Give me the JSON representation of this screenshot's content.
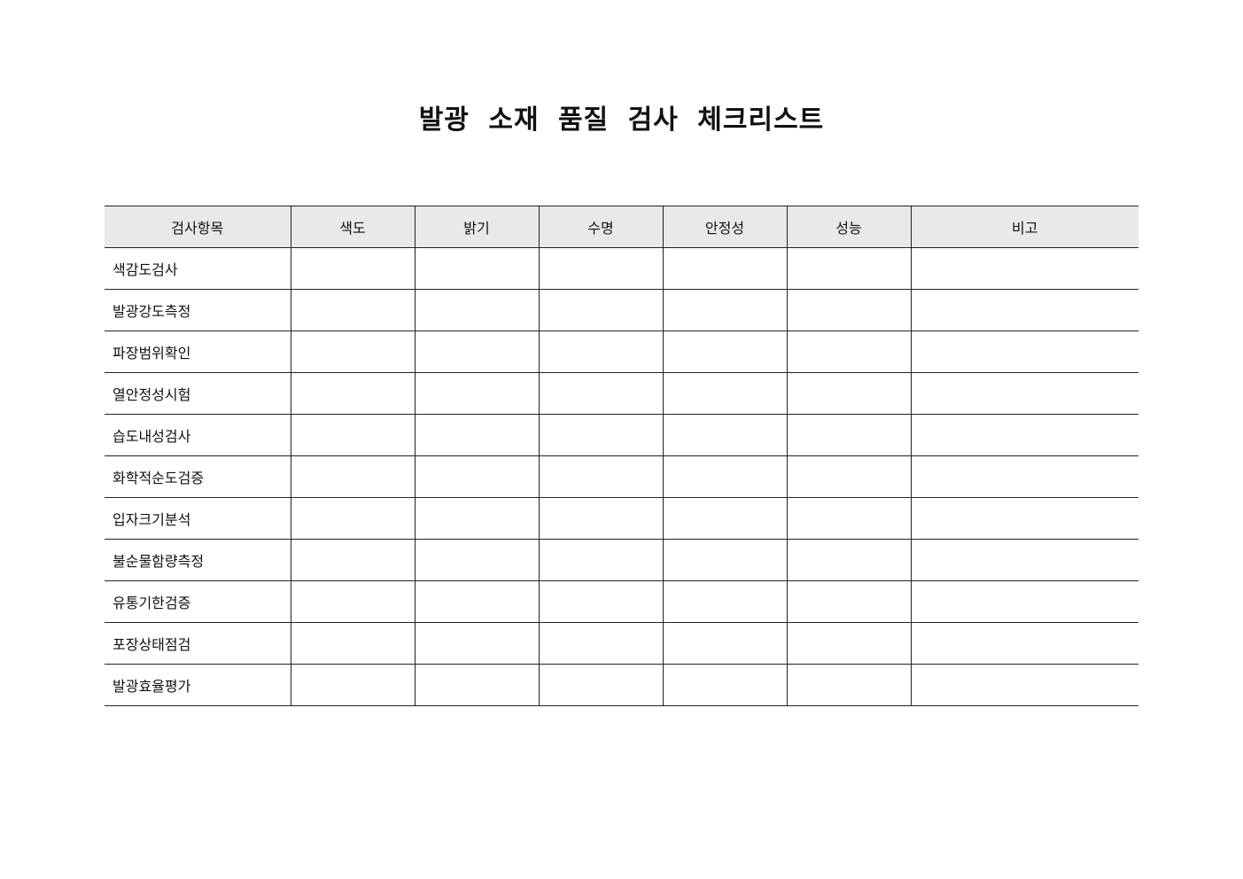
{
  "title": "발광 소재 품질 검사 체크리스트",
  "table": {
    "headers": [
      "검사항목",
      "색도",
      "밝기",
      "수명",
      "안정성",
      "성능",
      "비고"
    ],
    "rows": [
      "색감도검사",
      "발광강도측정",
      "파장범위확인",
      "열안정성시험",
      "습도내성검사",
      "화학적순도검증",
      "입자크기분석",
      "불순물함량측정",
      "유통기한검증",
      "포장상태점검",
      "발광효율평가"
    ]
  }
}
